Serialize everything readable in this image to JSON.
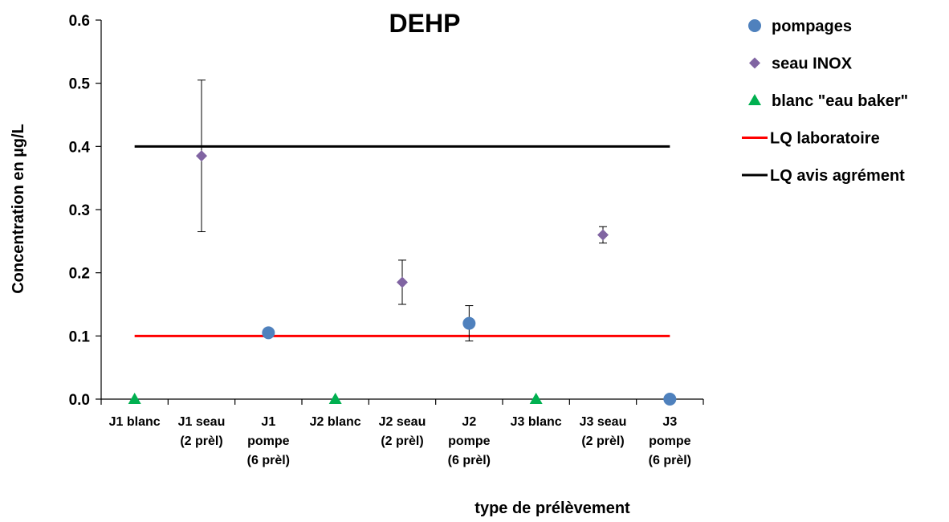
{
  "chart_data": {
    "type": "scatter",
    "title": "DEHP",
    "xlabel": "type de prélèvement",
    "ylabel": "Concentration en µg/L",
    "ylim": [
      0,
      0.6
    ],
    "yticks": [
      "0.0",
      "0.1",
      "0.2",
      "0.3",
      "0.4",
      "0.5",
      "0.6"
    ],
    "categories": [
      [
        "J1 blanc"
      ],
      [
        "J1 seau",
        "(2 prèl)"
      ],
      [
        "J1",
        "pompe",
        "(6 prèl)"
      ],
      [
        "J2 blanc"
      ],
      [
        "J2 seau",
        "(2 prèl)"
      ],
      [
        "J2",
        "pompe",
        "(6 prèl)"
      ],
      [
        "J3 blanc"
      ],
      [
        "J3 seau",
        "(2 prèl)"
      ],
      [
        "J3",
        "pompe",
        "(6 prèl)"
      ]
    ],
    "grid": false,
    "legend_position": "right",
    "series": [
      {
        "name": "pompages",
        "marker": "circle",
        "color": "#4f81bd",
        "points": [
          {
            "cat": 2,
            "y": 0.105,
            "err": null
          },
          {
            "cat": 5,
            "y": 0.12,
            "err": [
              0.092,
              0.148
            ]
          },
          {
            "cat": 8,
            "y": 0.0,
            "err": null
          }
        ]
      },
      {
        "name": "seau INOX",
        "marker": "diamond",
        "color": "#8064a2",
        "points": [
          {
            "cat": 1,
            "y": 0.385,
            "err": [
              0.265,
              0.505
            ]
          },
          {
            "cat": 4,
            "y": 0.185,
            "err": [
              0.15,
              0.22
            ]
          },
          {
            "cat": 7,
            "y": 0.26,
            "err": [
              0.247,
              0.273
            ]
          }
        ]
      },
      {
        "name": "blanc \"eau baker\"",
        "marker": "triangle",
        "color": "#00b050",
        "points": [
          {
            "cat": 0,
            "y": 0.0,
            "err": null
          },
          {
            "cat": 3,
            "y": 0.0,
            "err": null
          },
          {
            "cat": 6,
            "y": 0.0,
            "err": null
          }
        ]
      },
      {
        "name": "LQ laboratoire",
        "marker": "line",
        "color": "#ff0000",
        "y": 0.1,
        "x_range": [
          0,
          8
        ]
      },
      {
        "name": "LQ avis agrément",
        "marker": "line",
        "color": "#000000",
        "y": 0.4,
        "x_range": [
          0,
          8
        ]
      }
    ]
  }
}
